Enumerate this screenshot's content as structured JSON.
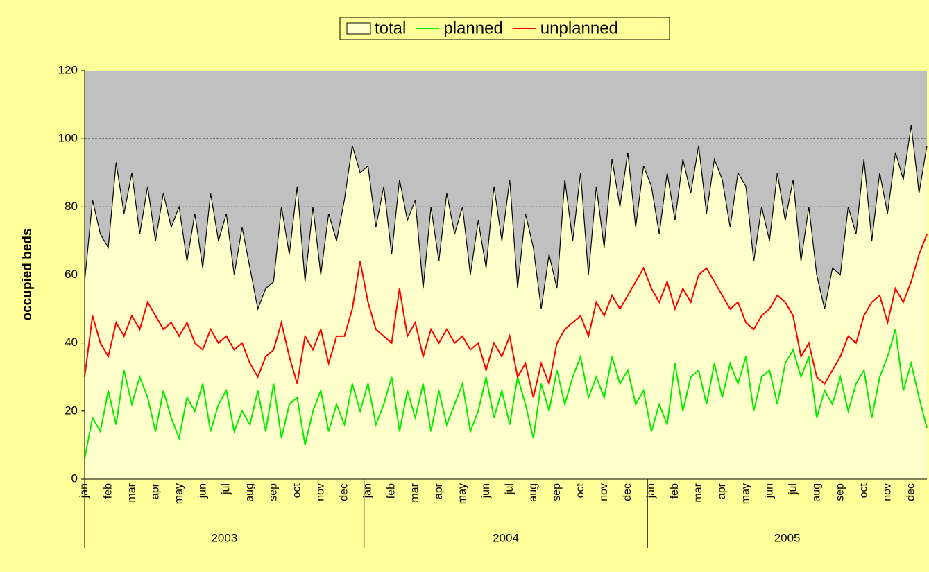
{
  "chart_data": {
    "type": "line",
    "y_label": "occupied beds",
    "categories": [
      "jan",
      null,
      null,
      "feb",
      null,
      null,
      "mar",
      null,
      null,
      "apr",
      null,
      null,
      "may",
      null,
      null,
      "jun",
      null,
      null,
      "jul",
      null,
      null,
      "aug",
      null,
      null,
      "sep",
      null,
      null,
      "oct",
      null,
      null,
      "nov",
      null,
      null,
      "dec",
      null,
      null,
      "jan",
      null,
      null,
      "feb",
      null,
      null,
      "mar",
      null,
      null,
      "apr",
      null,
      null,
      "may",
      null,
      null,
      "jun",
      null,
      null,
      "jul",
      null,
      null,
      "aug",
      null,
      null,
      "sep",
      null,
      null,
      "oct",
      null,
      null,
      "nov",
      null,
      null,
      "dec",
      null,
      null,
      "jan",
      null,
      null,
      "feb",
      null,
      null,
      "mar",
      null,
      null,
      "apr",
      null,
      null,
      "may",
      null,
      null,
      "jun",
      null,
      null,
      "jul",
      null,
      null,
      "aug",
      null,
      null,
      "sep",
      null,
      null,
      "oct",
      null,
      null,
      "nov",
      null,
      null,
      "dec",
      null,
      null
    ],
    "year_labels": [
      "2003",
      "2004",
      "2005"
    ],
    "series": [
      {
        "name": "total",
        "color": "#000000",
        "fill": "#ffffcc",
        "values": [
          58,
          82,
          72,
          68,
          93,
          78,
          90,
          72,
          86,
          70,
          84,
          74,
          80,
          64,
          78,
          62,
          84,
          70,
          78,
          60,
          74,
          62,
          50,
          56,
          58,
          80,
          66,
          86,
          58,
          80,
          60,
          78,
          70,
          82,
          98,
          90,
          92,
          74,
          86,
          66,
          88,
          76,
          82,
          56,
          80,
          64,
          84,
          72,
          80,
          60,
          76,
          62,
          86,
          70,
          88,
          56,
          78,
          68,
          50,
          66,
          56,
          88,
          70,
          90,
          60,
          86,
          68,
          94,
          80,
          96,
          74,
          92,
          86,
          72,
          90,
          76,
          94,
          84,
          98,
          78,
          94,
          88,
          74,
          90,
          86,
          64,
          80,
          70,
          90,
          76,
          88,
          64,
          80,
          60,
          50,
          62,
          60,
          80,
          72,
          94,
          70,
          90,
          78,
          96,
          88,
          104,
          84,
          98
        ]
      },
      {
        "name": "planned",
        "color": "#00ee00",
        "values": [
          6,
          18,
          14,
          26,
          16,
          32,
          22,
          30,
          24,
          14,
          26,
          18,
          12,
          24,
          20,
          28,
          14,
          22,
          26,
          14,
          20,
          16,
          26,
          14,
          28,
          12,
          22,
          24,
          10,
          20,
          26,
          14,
          22,
          16,
          28,
          20,
          28,
          16,
          22,
          30,
          14,
          26,
          18,
          28,
          14,
          26,
          16,
          22,
          28,
          14,
          20,
          30,
          18,
          26,
          16,
          30,
          22,
          12,
          28,
          20,
          32,
          22,
          30,
          36,
          24,
          30,
          24,
          36,
          28,
          32,
          22,
          26,
          14,
          22,
          16,
          34,
          20,
          30,
          32,
          22,
          34,
          24,
          34,
          28,
          36,
          20,
          30,
          32,
          22,
          34,
          38,
          30,
          36,
          18,
          26,
          22,
          30,
          20,
          28,
          32,
          18,
          30,
          36,
          44,
          26,
          34,
          24,
          15
        ]
      },
      {
        "name": "unplanned",
        "color": "#ff0000",
        "values": [
          30,
          48,
          40,
          36,
          46,
          42,
          48,
          44,
          52,
          48,
          44,
          46,
          42,
          46,
          40,
          38,
          44,
          40,
          42,
          38,
          40,
          34,
          30,
          36,
          38,
          46,
          36,
          28,
          42,
          38,
          44,
          34,
          42,
          42,
          50,
          64,
          52,
          44,
          42,
          40,
          56,
          42,
          46,
          36,
          44,
          40,
          44,
          40,
          42,
          38,
          40,
          32,
          40,
          36,
          42,
          30,
          34,
          24,
          34,
          28,
          40,
          44,
          46,
          48,
          42,
          52,
          48,
          54,
          50,
          54,
          58,
          62,
          56,
          52,
          58,
          50,
          56,
          52,
          60,
          62,
          58,
          54,
          50,
          52,
          46,
          44,
          48,
          50,
          54,
          52,
          48,
          36,
          40,
          30,
          28,
          32,
          36,
          42,
          40,
          48,
          52,
          54,
          46,
          56,
          52,
          58,
          66,
          72
        ]
      }
    ],
    "ylim": [
      0,
      120
    ],
    "yticks": [
      0,
      20,
      40,
      60,
      80,
      100,
      120
    ],
    "grid": true,
    "plot_background": "#c0c0c0",
    "legend": "top"
  }
}
